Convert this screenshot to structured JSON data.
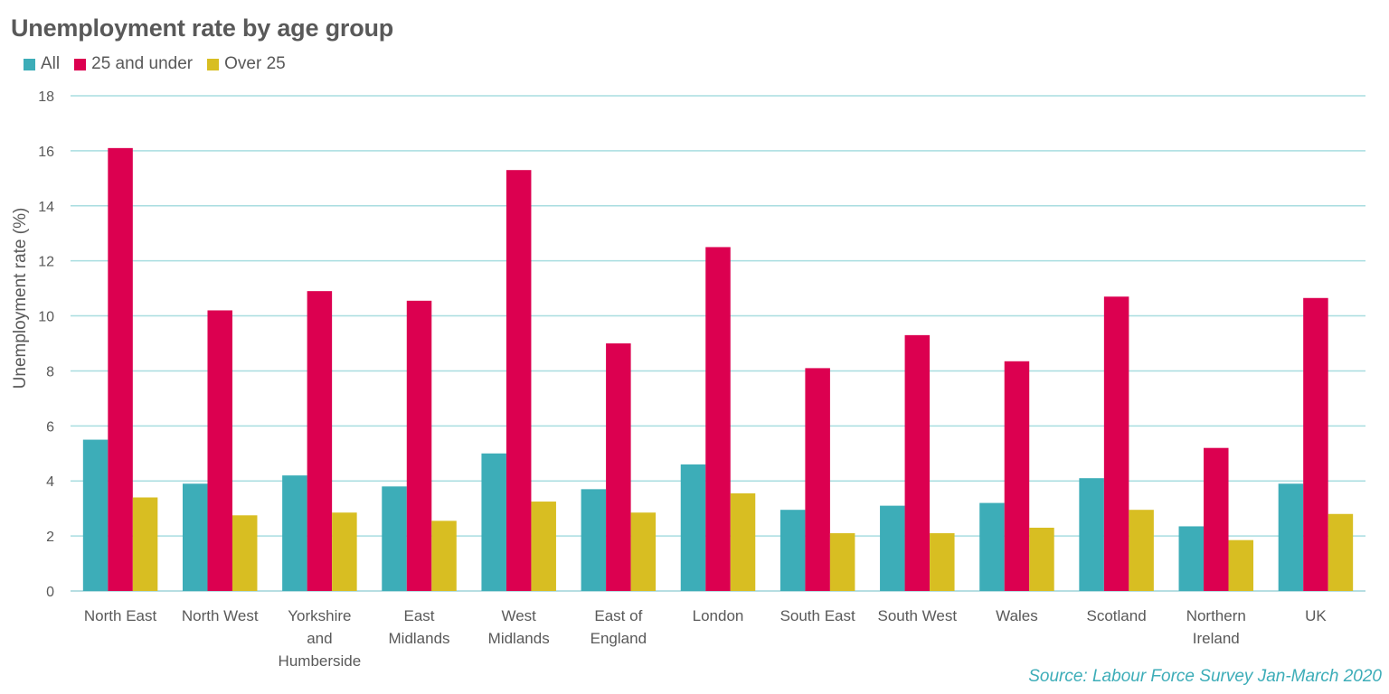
{
  "chart_data": {
    "type": "bar",
    "title": "Unemployment rate by age group",
    "ylabel": "Unemployment rate (%)",
    "xlabel": "",
    "ylim": [
      0,
      18
    ],
    "yticks": [
      0,
      2,
      4,
      6,
      8,
      10,
      12,
      14,
      16,
      18
    ],
    "grid": true,
    "legend_position": "top-left",
    "categories": [
      [
        "North East"
      ],
      [
        "North West"
      ],
      [
        "Yorkshire",
        "and",
        "Humberside"
      ],
      [
        "East",
        "Midlands"
      ],
      [
        "West",
        "Midlands"
      ],
      [
        "East of",
        "England"
      ],
      [
        "London"
      ],
      [
        "South East"
      ],
      [
        "South West"
      ],
      [
        "Wales"
      ],
      [
        "Scotland"
      ],
      [
        "Northern",
        "Ireland"
      ],
      [
        "UK"
      ]
    ],
    "series": [
      {
        "name": "All",
        "color": "#3dadb8",
        "values": [
          5.5,
          3.9,
          4.2,
          3.8,
          5.0,
          3.7,
          4.6,
          2.95,
          3.1,
          3.2,
          4.1,
          2.35,
          3.9
        ]
      },
      {
        "name": "25 and under",
        "color": "#dc0050",
        "values": [
          16.1,
          10.2,
          10.9,
          10.55,
          15.3,
          9.0,
          12.5,
          8.1,
          9.3,
          8.35,
          10.7,
          5.2,
          10.65
        ]
      },
      {
        "name": "Over 25",
        "color": "#d8be22",
        "values": [
          3.4,
          2.75,
          2.85,
          2.55,
          3.25,
          2.85,
          3.55,
          2.1,
          2.1,
          2.3,
          2.95,
          1.85,
          2.8
        ]
      }
    ]
  },
  "source": "Source: Labour Force Survey Jan-March 2020"
}
